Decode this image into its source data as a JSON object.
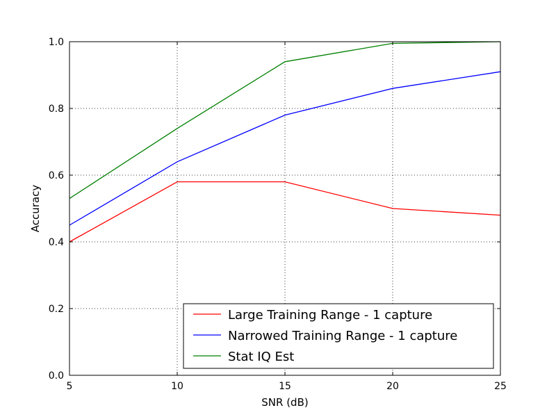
{
  "chart_data": {
    "type": "line",
    "xlabel": "SNR (dB)",
    "ylabel": "Accuracy",
    "xlim": [
      5,
      25
    ],
    "ylim": [
      0.0,
      1.0
    ],
    "xticks": [
      "5",
      "10",
      "15",
      "20",
      "25"
    ],
    "yticks": [
      "0.0",
      "0.2",
      "0.4",
      "0.6",
      "0.8",
      "1.0"
    ],
    "grid": true,
    "legend_position": "lower-right",
    "x": [
      5,
      10,
      15,
      20,
      25
    ],
    "series": [
      {
        "name": "Large Training Range - 1 capture",
        "color": "#ff0000",
        "values": [
          0.4,
          0.58,
          0.58,
          0.5,
          0.48
        ]
      },
      {
        "name": "Narrowed Training Range - 1 capture",
        "color": "#0000ff",
        "values": [
          0.45,
          0.64,
          0.78,
          0.86,
          0.91
        ]
      },
      {
        "name": "Stat IQ Est",
        "color": "#008000",
        "values": [
          0.53,
          0.74,
          0.94,
          0.995,
          1.0
        ]
      }
    ]
  }
}
